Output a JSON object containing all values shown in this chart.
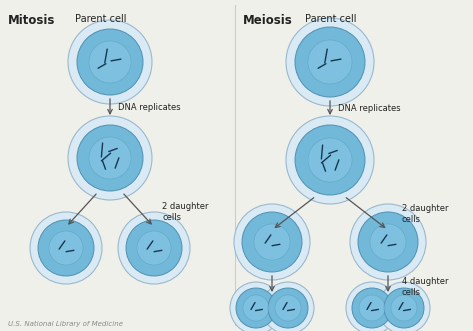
{
  "bg_color": "#f0f0eb",
  "cell_outer_color": "#daeaf5",
  "cell_outer_edge": "#9ab8cc",
  "cell_body_color": "#72b8d8",
  "cell_body_edge": "#5090b0",
  "cell_nucleus_color": "#88c8e8",
  "chr_color": "#1a3550",
  "arrow_color": "#555555",
  "divider_color": "#cccccc",
  "text_color": "#222222",
  "footer_color": "#888888",
  "title_mitosis": "Mitosis",
  "title_meiosis": "Meiosis",
  "label_parent": "Parent cell",
  "label_dna": "DNA replicates",
  "label_2daughter": "2 daughter\ncells",
  "label_4daughter": "4 daughter\ncells",
  "label_source": "U.S. National Library of Medicine"
}
